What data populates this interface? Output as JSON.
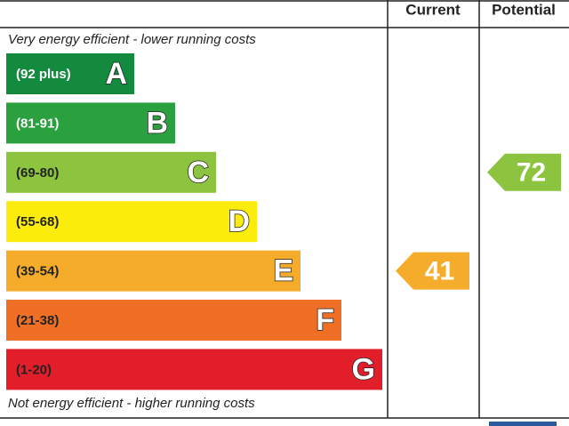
{
  "chart_data": {
    "type": "epc",
    "headers": [
      "Current",
      "Potential"
    ],
    "top_note": "Very energy efficient - lower running costs",
    "bottom_note": "Not energy efficient - higher running costs",
    "bands": [
      {
        "letter": "A",
        "range": "(92 plus)",
        "color": "#138a3e"
      },
      {
        "letter": "B",
        "range": "(81-91)",
        "color": "#2aa03e"
      },
      {
        "letter": "C",
        "range": "(69-80)",
        "color": "#8cc43f"
      },
      {
        "letter": "D",
        "range": "(55-68)",
        "color": "#fcec0c"
      },
      {
        "letter": "E",
        "range": "(39-54)",
        "color": "#f5ac2a"
      },
      {
        "letter": "F",
        "range": "(21-38)",
        "color": "#ef6f25"
      },
      {
        "letter": "G",
        "range": "(1-20)",
        "color": "#e21e2b"
      }
    ],
    "current": {
      "value": 41,
      "color": "#f5ac2a"
    },
    "potential": {
      "value": 72,
      "color": "#8cc43f"
    }
  }
}
